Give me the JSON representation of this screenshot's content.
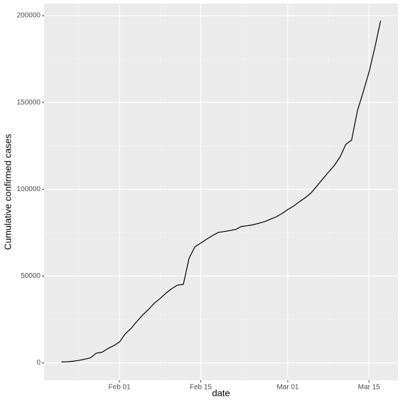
{
  "chart_data": {
    "type": "line",
    "x_label": "date",
    "y_label": "Cumulative confirmed cases",
    "x": [
      "Jan 22",
      "Jan 23",
      "Jan 24",
      "Jan 25",
      "Jan 26",
      "Jan 27",
      "Jan 28",
      "Jan 29",
      "Jan 30",
      "Jan 31",
      "Feb 01",
      "Feb 02",
      "Feb 03",
      "Feb 04",
      "Feb 05",
      "Feb 06",
      "Feb 07",
      "Feb 08",
      "Feb 09",
      "Feb 10",
      "Feb 11",
      "Feb 12",
      "Feb 13",
      "Feb 14",
      "Feb 15",
      "Feb 16",
      "Feb 17",
      "Feb 18",
      "Feb 19",
      "Feb 20",
      "Feb 21",
      "Feb 22",
      "Feb 23",
      "Feb 24",
      "Feb 25",
      "Feb 26",
      "Feb 27",
      "Feb 28",
      "Feb 29",
      "Mar 01",
      "Mar 02",
      "Mar 03",
      "Mar 04",
      "Mar 05",
      "Mar 06",
      "Mar 07",
      "Mar 08",
      "Mar 09",
      "Mar 10",
      "Mar 11",
      "Mar 12",
      "Mar 13",
      "Mar 14",
      "Mar 15",
      "Mar 16",
      "Mar 17"
    ],
    "values": [
      555,
      654,
      941,
      1434,
      2118,
      2927,
      5578,
      6166,
      8234,
      9927,
      12038,
      16787,
      19881,
      23892,
      27635,
      30794,
      34391,
      37120,
      40150,
      42762,
      44802,
      45221,
      60368,
      66885,
      69030,
      71224,
      73258,
      75136,
      75639,
      76197,
      76823,
      78579,
      78965,
      79568,
      80413,
      81395,
      82754,
      84120,
      86011,
      88369,
      90306,
      92840,
      95120,
      97886,
      101801,
      105847,
      109821,
      113590,
      118620,
      125875,
      128352,
      145205,
      156101,
      167454,
      181574,
      197102
    ],
    "color": "#000000",
    "xlim": [
      "Jan 19",
      "Mar 20"
    ],
    "xticks": [
      "Feb 01",
      "Feb 15",
      "Mar 01",
      "Mar 15"
    ],
    "ylim": [
      -10000,
      207000
    ],
    "yticks": [
      0,
      50000,
      100000,
      150000,
      200000
    ],
    "grid": true
  }
}
